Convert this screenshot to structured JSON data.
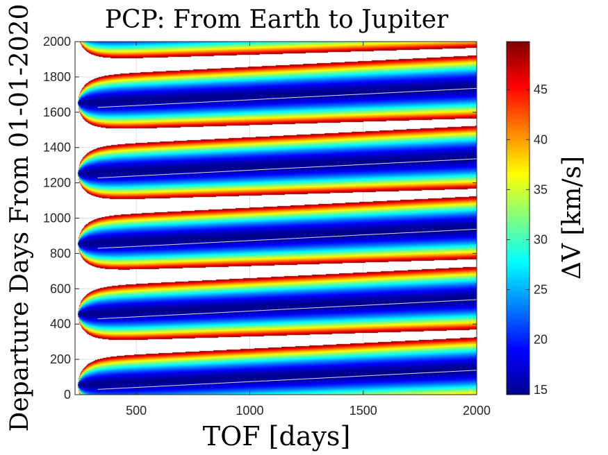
{
  "chart_data": {
    "type": "heatmap",
    "title": "PCP: From Earth to Jupiter",
    "xlabel": "TOF [days]",
    "ylabel": "Departure Days From 01-01-2020",
    "colorbar_label": "ΔV [km/s]",
    "xlim": [
      230,
      2000
    ],
    "ylim": [
      0,
      2000
    ],
    "x_ticks": [
      500,
      1000,
      1500,
      2000
    ],
    "x_tick_labels": [
      "500",
      "1000",
      "1500",
      "2000"
    ],
    "y_ticks": [
      0,
      200,
      400,
      600,
      800,
      1000,
      1200,
      1400,
      1600,
      1800,
      2000
    ],
    "y_tick_labels": [
      "0",
      "200",
      "400",
      "600",
      "800",
      "1000",
      "1200",
      "1400",
      "1600",
      "1800",
      "2000"
    ],
    "clim": [
      14.5,
      49.8
    ],
    "colorbar_ticks": [
      15,
      20,
      25,
      30,
      35,
      40,
      45
    ],
    "colorbar_tick_labels": [
      "15",
      "20",
      "25",
      "30",
      "35",
      "40",
      "45"
    ],
    "colormap": "jet",
    "grid": true,
    "synodic_period_days": 399,
    "lobes": [
      {
        "center_departure_day": 100,
        "nose_tof_days": 243,
        "min_delta_v": 15
      },
      {
        "center_departure_day": 500,
        "nose_tof_days": 243,
        "min_delta_v": 15
      },
      {
        "center_departure_day": 899,
        "nose_tof_days": 243,
        "min_delta_v": 15
      },
      {
        "center_departure_day": 1298,
        "nose_tof_days": 243,
        "min_delta_v": 15
      },
      {
        "center_departure_day": 1697,
        "nose_tof_days": 243,
        "min_delta_v": 15
      },
      {
        "center_departure_day": 2096,
        "nose_tof_days": 243,
        "min_delta_v": 15
      }
    ]
  }
}
